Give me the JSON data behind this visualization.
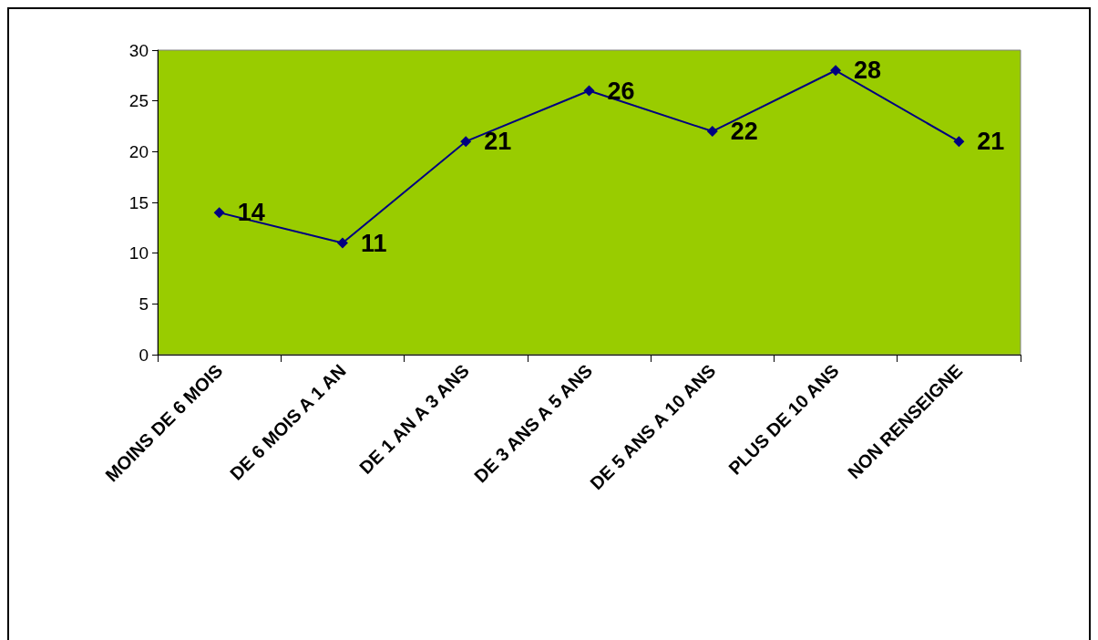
{
  "chart_data": {
    "type": "line",
    "categories": [
      "MOINS DE 6 MOIS",
      "DE 6 MOIS A 1 AN",
      "DE 1 AN A 3 ANS",
      "DE 3 ANS A 5 ANS",
      "DE 5 ANS A 10 ANS",
      "PLUS DE 10 ANS",
      "NON RENSEIGNE"
    ],
    "series": [
      {
        "color": "#000080",
        "values": [
          14,
          11,
          21,
          26,
          22,
          28,
          21
        ]
      }
    ],
    "ylim": [
      0,
      30
    ],
    "yticks": [
      0,
      5,
      10,
      15,
      20,
      25,
      30
    ],
    "grid": false,
    "marker": "diamond",
    "line_style": "solid",
    "data_labels": true
  }
}
